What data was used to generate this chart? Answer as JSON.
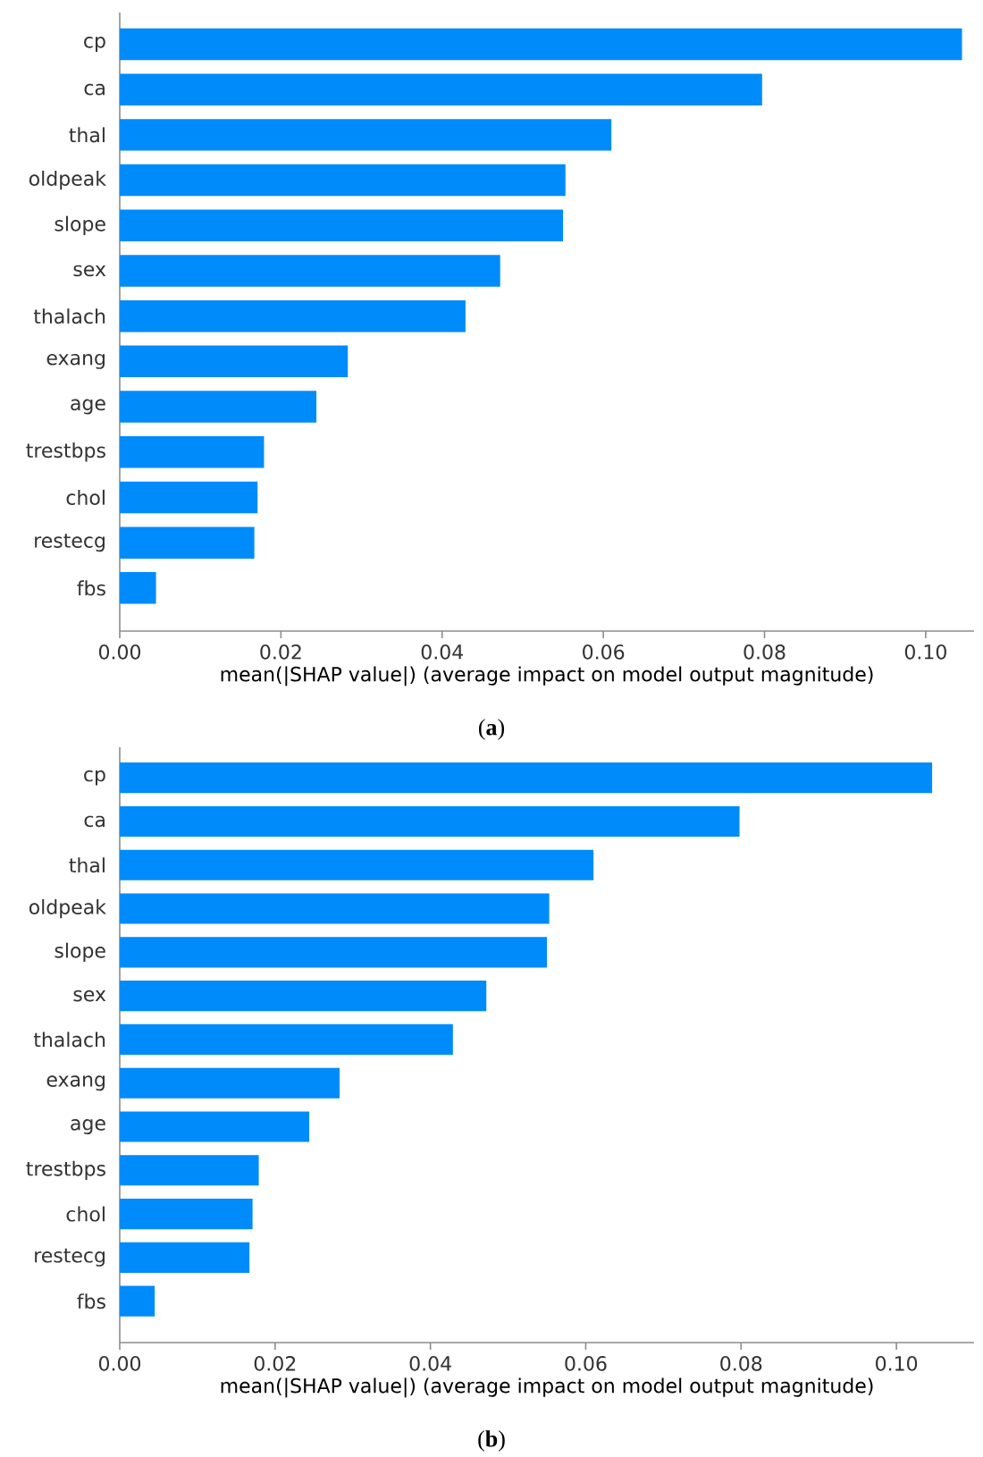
{
  "chart_data": [
    {
      "type": "bar",
      "orientation": "horizontal",
      "color": "#008bfb",
      "categories": [
        "cp",
        "ca",
        "thal",
        "oldpeak",
        "slope",
        "sex",
        "thalach",
        "exang",
        "age",
        "trestbps",
        "chol",
        "restecg",
        "fbs"
      ],
      "values": [
        0.1045,
        0.0797,
        0.061,
        0.0553,
        0.055,
        0.0472,
        0.0429,
        0.0283,
        0.0244,
        0.0179,
        0.0171,
        0.0167,
        0.0045
      ],
      "xlim": [
        0,
        0.106
      ],
      "xticks": [
        {
          "value": 0,
          "label": "0.00"
        },
        {
          "value": 0.02,
          "label": "0.02"
        },
        {
          "value": 0.04,
          "label": "0.04"
        },
        {
          "value": 0.06,
          "label": "0.06"
        },
        {
          "value": 0.08,
          "label": "0.08"
        },
        {
          "value": 0.1,
          "label": "0.10"
        }
      ],
      "xlabel": "mean(|SHAP value|) (average impact on model output magnitude)",
      "annotations": [
        "(**a**)"
      ]
    },
    {
      "type": "bar",
      "orientation": "horizontal",
      "color": "#008bfb",
      "categories": [
        "cp",
        "ca",
        "thal",
        "oldpeak",
        "slope",
        "sex",
        "thalach",
        "exang",
        "age",
        "trestbps",
        "chol",
        "restecg",
        "fbs"
      ],
      "values": [
        0.1046,
        0.0798,
        0.061,
        0.0553,
        0.055,
        0.0472,
        0.0429,
        0.0283,
        0.0244,
        0.0179,
        0.0171,
        0.0167,
        0.0045
      ],
      "xlim": [
        0,
        0.11
      ],
      "xticks": [
        {
          "value": 0,
          "label": "0.00"
        },
        {
          "value": 0.02,
          "label": "0.02"
        },
        {
          "value": 0.04,
          "label": "0.04"
        },
        {
          "value": 0.06,
          "label": "0.06"
        },
        {
          "value": 0.08,
          "label": "0.08"
        },
        {
          "value": 0.1,
          "label": "0.10"
        }
      ],
      "xlabel": "mean(|SHAP value|) (average impact on model output magnitude)",
      "annotations": [
        "(**b**)"
      ]
    }
  ]
}
